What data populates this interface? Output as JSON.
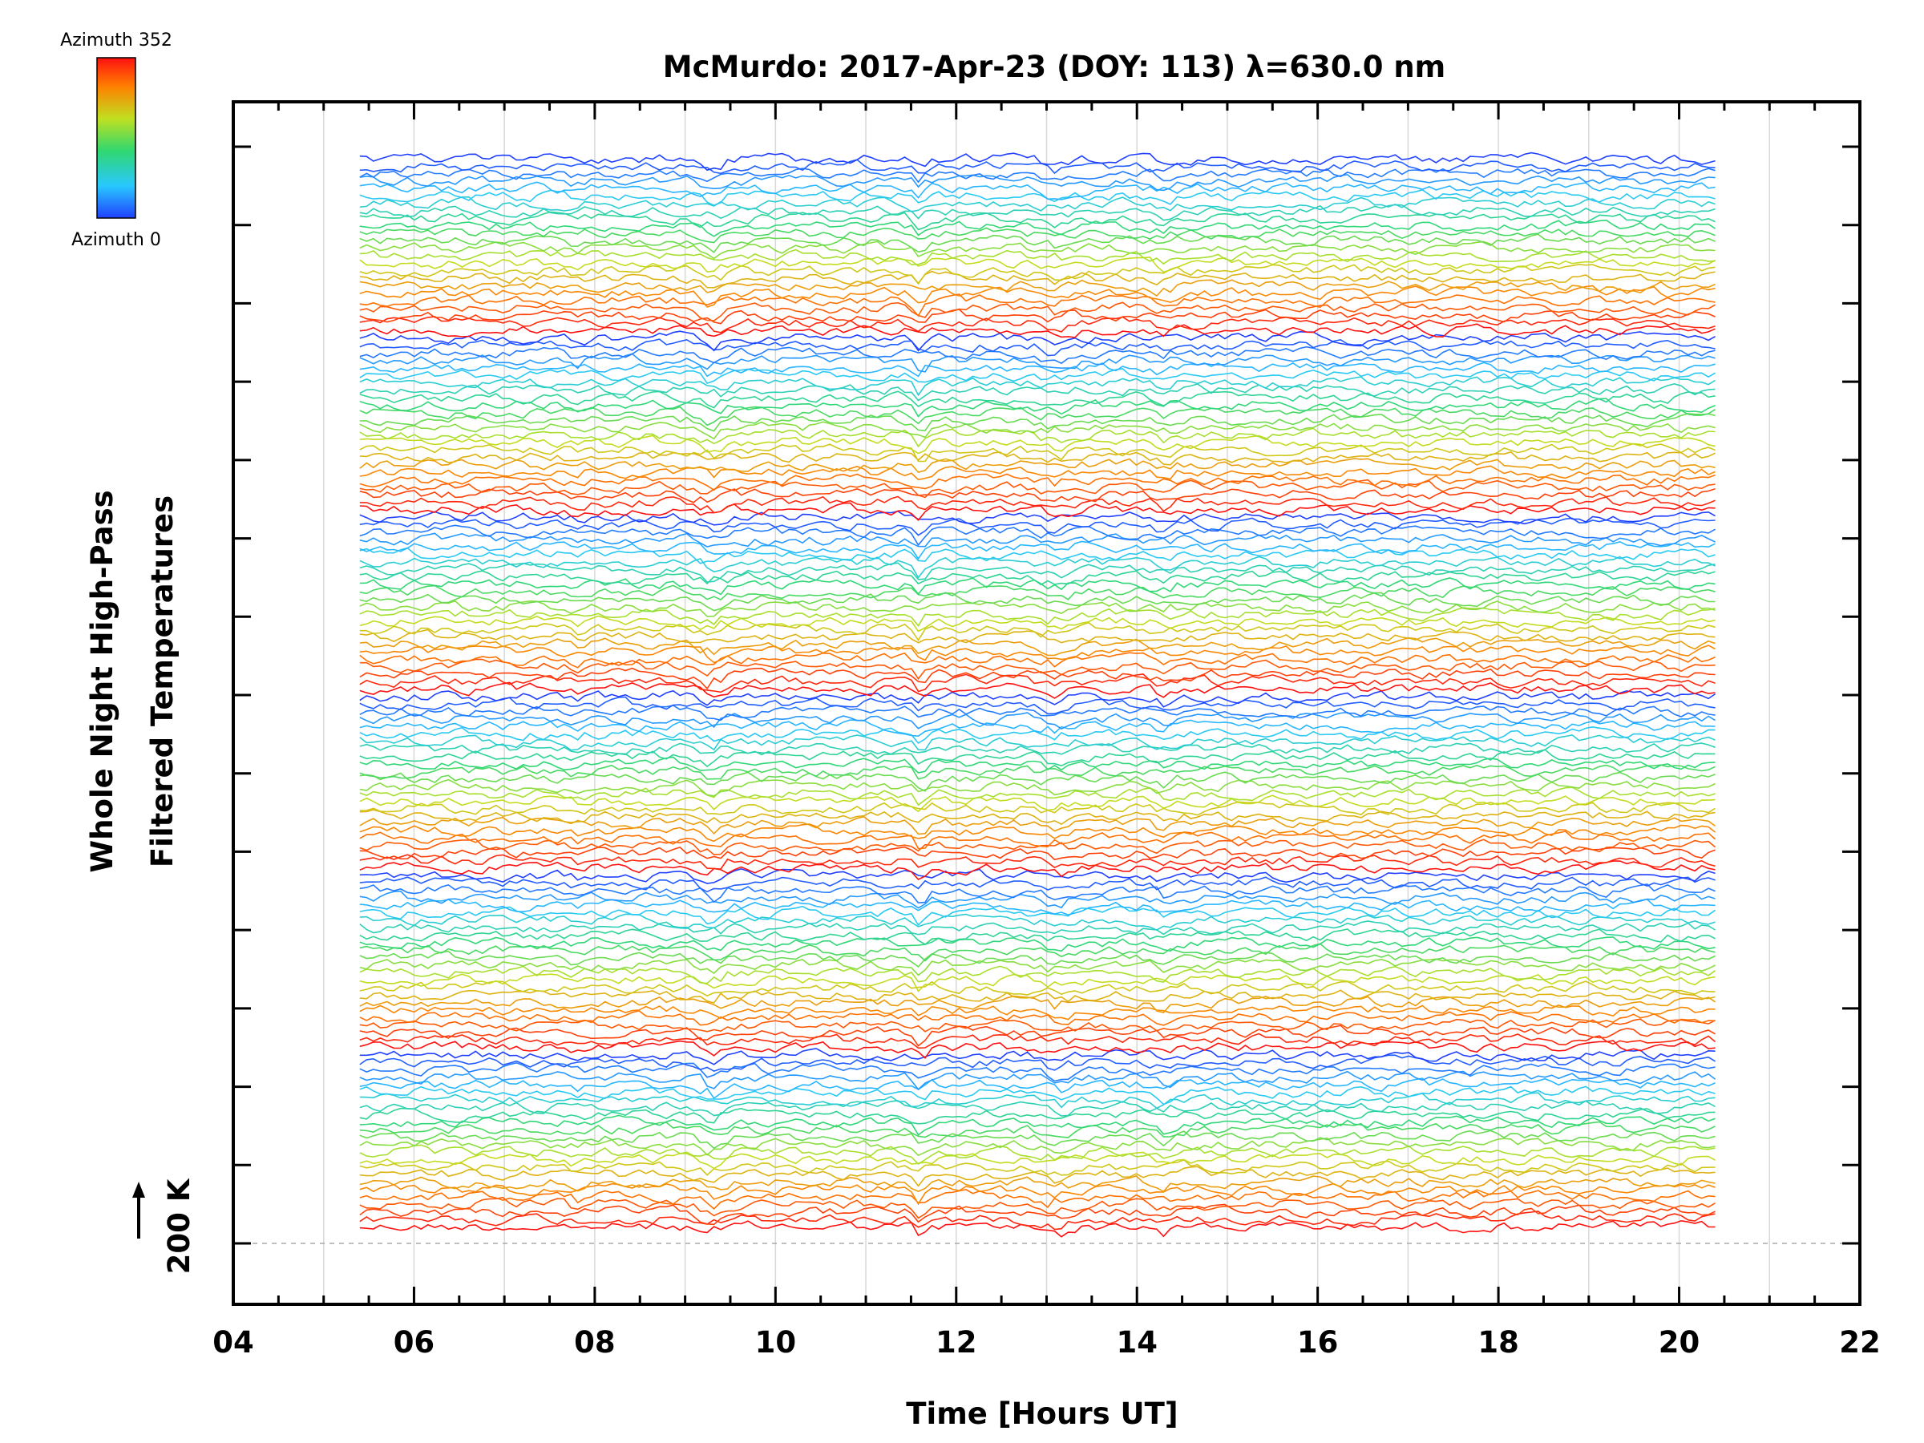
{
  "chart_data": {
    "type": "line",
    "title": "McMurdo: 2017-Apr-23 (DOY: 113) λ=630.0 nm",
    "xlabel": "Time [Hours UT]",
    "ylabel_line1": "Whole Night High-Pass",
    "ylabel_line2": "Filtered Temperatures",
    "scale_label": "200 K",
    "scale_value_k": 200,
    "xlim": [
      4,
      22
    ],
    "x_ticks": [
      "04",
      "06",
      "08",
      "10",
      "12",
      "14",
      "16",
      "18",
      "20",
      "22"
    ],
    "x_tick_values": [
      4,
      6,
      8,
      10,
      12,
      14,
      16,
      18,
      20,
      22
    ],
    "data_time_range": [
      5.4,
      20.4
    ],
    "n_traces": 144,
    "traces_per_azimuth_cycle": 24,
    "azimuth_range": [
      0,
      352
    ],
    "colorbar": {
      "top_label": "Azimuth 352",
      "bottom_label": "Azimuth 0",
      "colormap": "rainbow",
      "stops": [
        "#2040ff",
        "#28c8ff",
        "#30d870",
        "#c0e020",
        "#ff8000",
        "#ff1010"
      ]
    },
    "grid": true,
    "baseline_dashed": true
  }
}
